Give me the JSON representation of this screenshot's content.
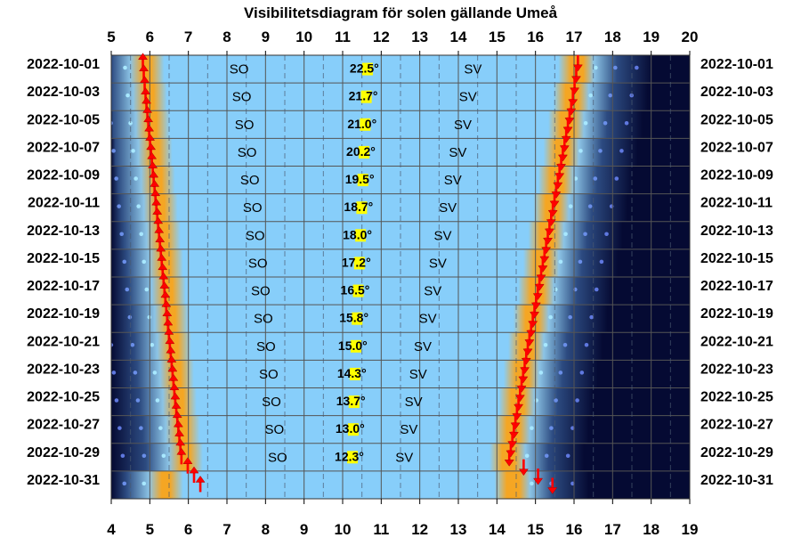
{
  "chart_data": {
    "type": "visibility-diagram",
    "title": "Visibilitetsdiagram för solen gällande Umeå",
    "top_axis_ticks": [
      5,
      6,
      7,
      8,
      9,
      10,
      11,
      12,
      13,
      14,
      15,
      16,
      17,
      18,
      19,
      20
    ],
    "bottom_axis_ticks": [
      4,
      5,
      6,
      7,
      8,
      9,
      10,
      11,
      12,
      13,
      14,
      15,
      16,
      17,
      18,
      19
    ],
    "top_axis_range": [
      5,
      20
    ],
    "bottom_axis_range": [
      4,
      19
    ],
    "grid": true,
    "colors": {
      "day": "#87cefa",
      "twilight": "#f5a623",
      "night": "#050a33",
      "sun_arrow": "#ff0000",
      "noon_marker": "#ffff00",
      "grid": "#555555"
    },
    "rows": [
      {
        "date": "2022-10-01",
        "sunrise": 5.82,
        "sunset": 17.1,
        "direction_rise": "SO",
        "direction_set": "SV",
        "noon_altitude": "22.5°"
      },
      {
        "date": "2022-10-03",
        "sunrise": 5.89,
        "sunset": 16.97,
        "direction_rise": "SO",
        "direction_set": "SV",
        "noon_altitude": "21.7°"
      },
      {
        "date": "2022-10-05",
        "sunrise": 5.96,
        "sunset": 16.84,
        "direction_rise": "SO",
        "direction_set": "SV",
        "noon_altitude": "21.0°"
      },
      {
        "date": "2022-10-07",
        "sunrise": 6.03,
        "sunset": 16.71,
        "direction_rise": "SO",
        "direction_set": "SV",
        "noon_altitude": "20.2°"
      },
      {
        "date": "2022-10-09",
        "sunrise": 6.1,
        "sunset": 16.58,
        "direction_rise": "SO",
        "direction_set": "SV",
        "noon_altitude": "19.5°"
      },
      {
        "date": "2022-10-11",
        "sunrise": 6.17,
        "sunset": 16.45,
        "direction_rise": "SO",
        "direction_set": "SV",
        "noon_altitude": "18.7°"
      },
      {
        "date": "2022-10-13",
        "sunrise": 6.24,
        "sunset": 16.32,
        "direction_rise": "SO",
        "direction_set": "SV",
        "noon_altitude": "18.0°"
      },
      {
        "date": "2022-10-15",
        "sunrise": 6.31,
        "sunset": 16.19,
        "direction_rise": "SO",
        "direction_set": "SV",
        "noon_altitude": "17.2°"
      },
      {
        "date": "2022-10-17",
        "sunrise": 6.38,
        "sunset": 16.06,
        "direction_rise": "SO",
        "direction_set": "SV",
        "noon_altitude": "16.5°"
      },
      {
        "date": "2022-10-19",
        "sunrise": 6.45,
        "sunset": 15.93,
        "direction_rise": "SO",
        "direction_set": "SV",
        "noon_altitude": "15.8°"
      },
      {
        "date": "2022-10-21",
        "sunrise": 6.52,
        "sunset": 15.8,
        "direction_rise": "SO",
        "direction_set": "SV",
        "noon_altitude": "15.0°"
      },
      {
        "date": "2022-10-23",
        "sunrise": 6.59,
        "sunset": 15.68,
        "direction_rise": "SO",
        "direction_set": "SV",
        "noon_altitude": "14.3°"
      },
      {
        "date": "2022-10-25",
        "sunrise": 6.66,
        "sunset": 15.56,
        "direction_rise": "SO",
        "direction_set": "SV",
        "noon_altitude": "13.7°"
      },
      {
        "date": "2022-10-27",
        "sunrise": 6.74,
        "sunset": 15.44,
        "direction_rise": "SO",
        "direction_set": "SV",
        "noon_altitude": "13.0°"
      },
      {
        "date": "2022-10-29",
        "sunrise": 6.82,
        "sunset": 15.32,
        "direction_rise": "SO",
        "direction_set": "SV",
        "noon_altitude": "12.3°"
      },
      {
        "date": "2022-10-31",
        "sunrise": 6.31,
        "sunset": 15.44
      }
    ]
  }
}
